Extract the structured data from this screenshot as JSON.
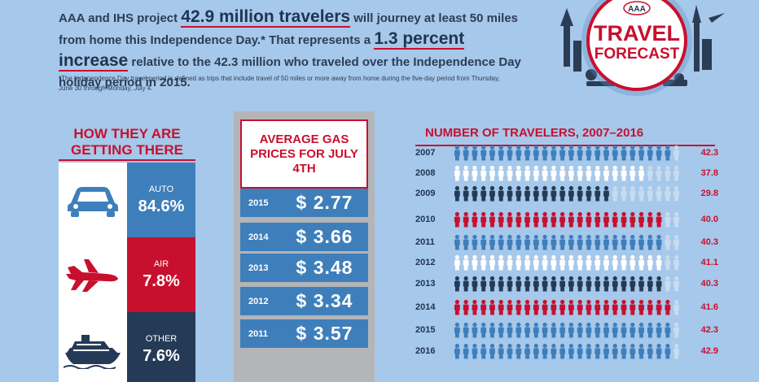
{
  "intro": {
    "part1": "AAA and IHS project ",
    "highlight1": "42.9 million travelers",
    "part2": " will journey at least 50 miles from home this Independence Day.* That represents a ",
    "highlight2": "1.3 percent increase",
    "part3": " relative to the 42.3 million who traveled over the Independence Day holiday period in 2015."
  },
  "footnote": "*The Independence Day travel period is defined as trips that include travel of 50 miles or more away from home during the five-day period from Thursday, June 30 through Monday, July 4.",
  "badge": {
    "logo": "AAA",
    "line1": "TRAVEL",
    "line2": "FORECAST"
  },
  "modes": {
    "title": "HOW THEY ARE GETTING THERE",
    "items": [
      {
        "label": "AUTO",
        "value": "84.6%",
        "color": "#3e7fbb",
        "icon": "car-icon"
      },
      {
        "label": "AIR",
        "value": "7.8%",
        "color": "#c8102e",
        "icon": "airplane-icon"
      },
      {
        "label": "OTHER",
        "value": "7.6%",
        "color": "#243a56",
        "icon": "cruise-ship-icon"
      }
    ]
  },
  "gas": {
    "title": "AVERAGE GAS PRICES FOR JULY 4TH",
    "rows": [
      {
        "year": "2015",
        "price": "$ 2.77"
      },
      {
        "year": "2014",
        "price": "$ 3.66"
      },
      {
        "year": "2013",
        "price": "$ 3.48"
      },
      {
        "year": "2012",
        "price": "$ 3.34"
      },
      {
        "year": "2011",
        "price": "$ 3.57"
      }
    ]
  },
  "chart_data": {
    "type": "bar",
    "title": "NUMBER OF TRAVELERS, 2007–2016",
    "categories": [
      "2007",
      "2008",
      "2009",
      "2010",
      "2011",
      "2012",
      "2013",
      "2014",
      "2015",
      "2016"
    ],
    "values": [
      42.3,
      37.8,
      29.8,
      40.0,
      40.3,
      41.1,
      40.3,
      41.6,
      42.3,
      42.9
    ],
    "value_labels": [
      "42.3",
      "37.8",
      "29.8",
      "40.0",
      "40.3",
      "41.1",
      "40.3",
      "41.6",
      "42.3",
      "42.9"
    ],
    "row_colors": [
      "#3e7fbb",
      "#ffffff",
      "#243a56",
      "#c8102e",
      "#3e7fbb",
      "#ffffff",
      "#243a56",
      "#c8102e",
      "#3e7fbb",
      "#3e7fbb"
    ],
    "faded_color": "#c7dcf0",
    "icons_per_row": 26,
    "scale_max": 44
  }
}
